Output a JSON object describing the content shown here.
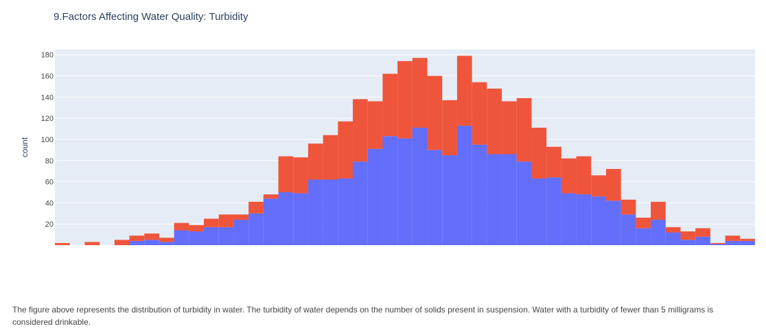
{
  "chart_data": {
    "type": "bar",
    "barmode": "stack",
    "title": "9.Factors Affecting Water Quality: Turbidity",
    "xlabel": "",
    "ylabel": "count",
    "ylim": [
      0,
      185
    ],
    "yticks": [
      20,
      40,
      60,
      80,
      100,
      120,
      140,
      160,
      180
    ],
    "grid": true,
    "bin_count": 47,
    "series": [
      {
        "name": "blue",
        "color": "#636efa",
        "values": [
          0,
          0,
          0,
          0,
          0,
          4,
          5,
          3,
          14,
          13,
          17,
          17,
          24,
          30,
          44,
          50,
          49,
          62,
          62,
          63,
          79,
          91,
          103,
          101,
          111,
          90,
          85,
          113,
          95,
          86,
          86,
          79,
          63,
          64,
          49,
          48,
          46,
          42,
          29,
          16,
          24,
          12,
          5,
          8,
          1,
          4,
          4
        ]
      },
      {
        "name": "red",
        "color": "#ef553b",
        "values": [
          2,
          0,
          3,
          0,
          5,
          5,
          6,
          4,
          7,
          6,
          8,
          12,
          5,
          11,
          4,
          34,
          34,
          34,
          42,
          54,
          59,
          45,
          59,
          73,
          66,
          70,
          52,
          66,
          59,
          62,
          50,
          60,
          48,
          29,
          33,
          36,
          20,
          30,
          14,
          10,
          17,
          5,
          8,
          8,
          1,
          5,
          2
        ]
      }
    ]
  },
  "caption": "The figure above represents the distribution of turbidity in water. The turbidity of water depends on the number of solids present in suspension. Water with a turbidity of fewer than 5 milligrams is considered drinkable."
}
